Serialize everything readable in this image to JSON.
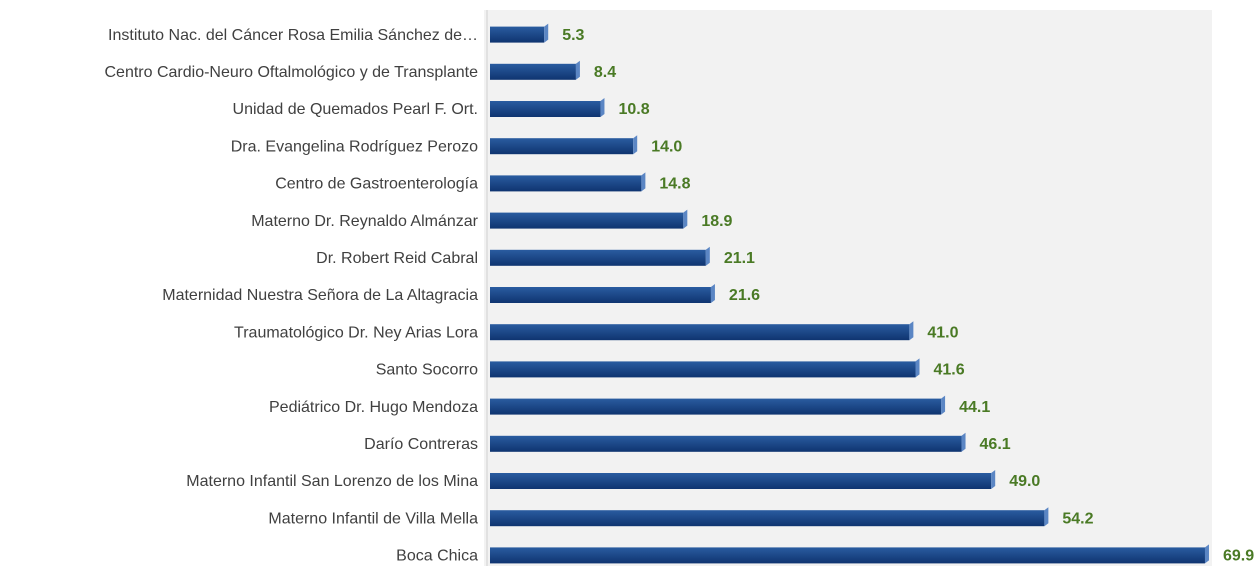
{
  "chart_data": {
    "type": "bar",
    "orientation": "horizontal",
    "categories": [
      "Instituto Nac. del Cáncer Rosa Emilia Sánchez de…",
      "Centro Cardio-Neuro Oftalmológico y de Transplante",
      "Unidad de Quemados Pearl F. Ort.",
      "Dra. Evangelina Rodríguez Perozo",
      "Centro de Gastroenterología",
      "Materno Dr. Reynaldo Almánzar",
      "Dr. Robert Reid Cabral",
      "Maternidad Nuestra Señora de La Altagracia",
      "Traumatológico Dr. Ney Arias Lora",
      "Santo Socorro",
      "Pediátrico Dr. Hugo Mendoza",
      "Darío Contreras",
      "Materno Infantil San Lorenzo de los Mina",
      "Materno Infantil de Villa Mella",
      "Boca Chica"
    ],
    "values": [
      5.3,
      8.4,
      10.8,
      14.0,
      14.8,
      18.9,
      21.1,
      21.6,
      41.0,
      41.6,
      44.1,
      46.1,
      49.0,
      54.2,
      69.9
    ],
    "value_labels": [
      "5.3",
      "8.4",
      "10.8",
      "14.0",
      "14.8",
      "18.9",
      "21.1",
      "21.6",
      "41.0",
      "41.6",
      "44.1",
      "46.1",
      "49.0",
      "54.2",
      "69.9"
    ],
    "color": "#1a4a8a",
    "label_color": "#4a7a25",
    "xlim": [
      0,
      70
    ]
  }
}
